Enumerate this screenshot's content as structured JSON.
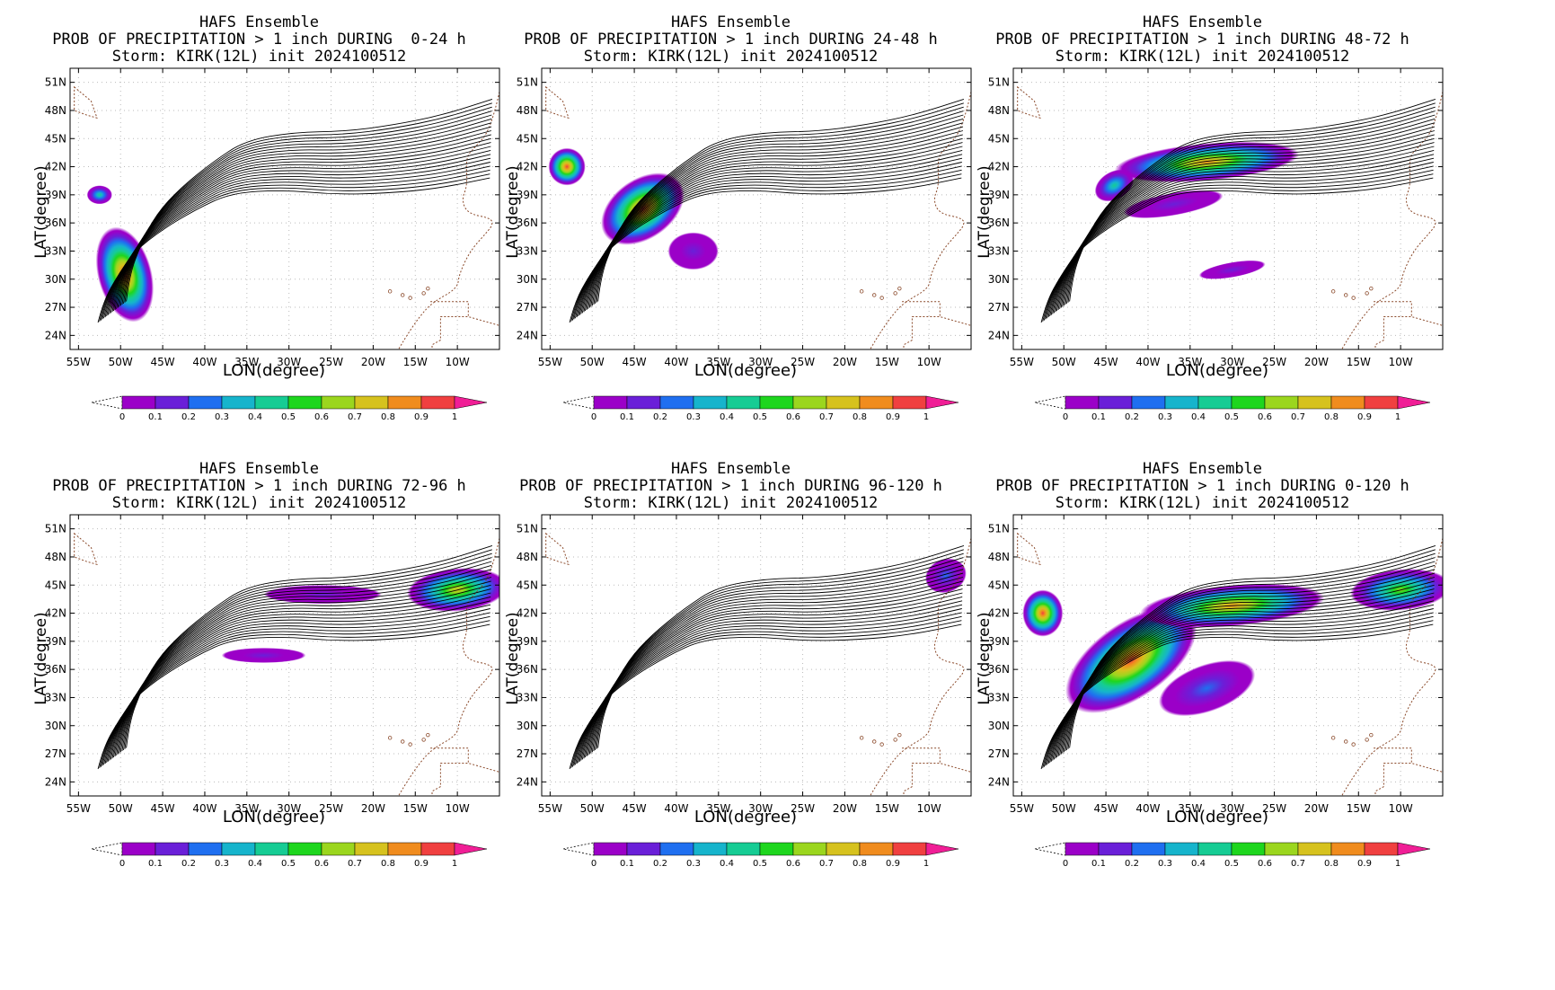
{
  "panels": [
    {
      "title": "HAFS Ensemble",
      "subtitle": "PROB OF PRECIPITATION > 1 inch DURING  0-24 h",
      "storm": "Storm: KIRK(12L) init 2024100512"
    },
    {
      "title": "HAFS Ensemble",
      "subtitle": "PROB OF PRECIPITATION > 1 inch DURING 24-48 h",
      "storm": "Storm: KIRK(12L) init 2024100512"
    },
    {
      "title": "HAFS Ensemble",
      "subtitle": "PROB OF PRECIPITATION > 1 inch DURING 48-72 h",
      "storm": "Storm: KIRK(12L) init 2024100512"
    },
    {
      "title": "HAFS Ensemble",
      "subtitle": "PROB OF PRECIPITATION > 1 inch DURING 72-96 h",
      "storm": "Storm: KIRK(12L) init 2024100512"
    },
    {
      "title": "HAFS Ensemble",
      "subtitle": "PROB OF PRECIPITATION > 1 inch DURING 96-120 h",
      "storm": "Storm: KIRK(12L) init 2024100512"
    },
    {
      "title": "HAFS Ensemble",
      "subtitle": "PROB OF PRECIPITATION > 1 inch DURING 0-120 h",
      "storm": "Storm: KIRK(12L) init 2024100512"
    }
  ],
  "axes": {
    "xlabel": "LON(degree)",
    "ylabel": "LAT(degree)",
    "lon_ticks": [
      "55W",
      "50W",
      "45W",
      "40W",
      "35W",
      "30W",
      "25W",
      "20W",
      "15W",
      "10W"
    ],
    "lat_ticks": [
      "51N",
      "48N",
      "45N",
      "42N",
      "39N",
      "36N",
      "33N",
      "30N",
      "27N",
      "24N"
    ]
  },
  "colorbar": {
    "labels": [
      "0",
      "0.1",
      "0.2",
      "0.3",
      "0.4",
      "0.5",
      "0.6",
      "0.7",
      "0.8",
      "0.9",
      "1"
    ],
    "colors": [
      "#9b00c8",
      "#6a1fd8",
      "#1f6ff0",
      "#16b4cc",
      "#16cc94",
      "#1ed61e",
      "#9bd61e",
      "#d6c21e",
      "#f08c1e",
      "#f04040"
    ],
    "over_color": "#f01e96"
  },
  "chart_data": {
    "type": "heatmap",
    "variable": "probability of precipitation > 1 inch",
    "lon_range": [
      -56,
      -5
    ],
    "lat_range": [
      22.5,
      52.5
    ],
    "tracks_note": "ensemble storm tracks overlaid in black",
    "panels": [
      "0-24 h",
      "24-48 h",
      "48-72 h",
      "72-96 h",
      "96-120 h",
      "0-120 h"
    ]
  }
}
